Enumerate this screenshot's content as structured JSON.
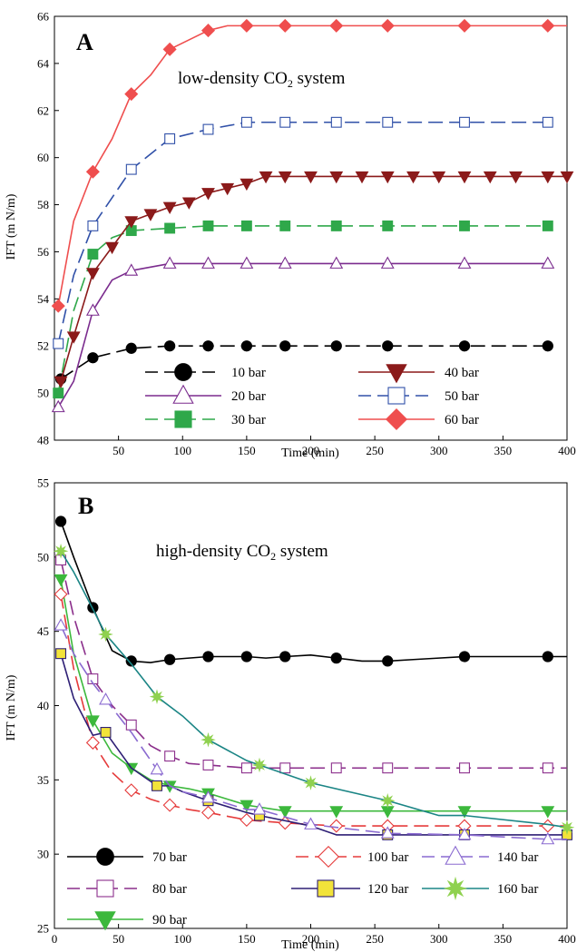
{
  "chart_data": [
    {
      "type": "line",
      "panel_label": "A",
      "annotation": {
        "prefix": "low-density CO",
        "subscript": "2",
        "suffix": " system"
      },
      "xlabel": "Time (min)",
      "ylabel": "IFT (m N/m)",
      "xlim": [
        0,
        400
      ],
      "ylim": [
        48,
        66
      ],
      "xticks": [
        50,
        100,
        150,
        200,
        250,
        300,
        350,
        400
      ],
      "yticks": [
        48,
        50,
        52,
        54,
        56,
        58,
        60,
        62,
        64,
        66
      ],
      "grid": false,
      "legend_position": "bottom",
      "series": [
        {
          "name": "10 bar",
          "color": "#000000",
          "dash": "long",
          "marker": "circle",
          "marker_fill": true,
          "x": [
            5,
            30,
            60,
            90,
            120,
            150,
            180,
            220,
            260,
            320,
            385
          ],
          "y": [
            50.6,
            51.5,
            51.9,
            52.0,
            52.0,
            52.0,
            52.0,
            52.0,
            52.0,
            52.0,
            52.0
          ],
          "markers_x": [
            5,
            30,
            60,
            90,
            120,
            150,
            180,
            220,
            260,
            320,
            385
          ]
        },
        {
          "name": "20 bar",
          "color": "#7b2c8e",
          "dash": "solid",
          "marker": "triangle-up",
          "marker_fill": false,
          "x": [
            3,
            15,
            30,
            45,
            60,
            90,
            120,
            150,
            180,
            220,
            260,
            320,
            385
          ],
          "y": [
            49.4,
            50.5,
            53.5,
            54.8,
            55.2,
            55.5,
            55.5,
            55.5,
            55.5,
            55.5,
            55.5,
            55.5,
            55.5
          ],
          "markers_x": [
            3,
            30,
            60,
            90,
            120,
            150,
            180,
            220,
            260,
            320,
            385
          ]
        },
        {
          "name": "30 bar",
          "color": "#2fa84a",
          "dash": "long",
          "marker": "square",
          "marker_fill": true,
          "x": [
            3,
            15,
            30,
            45,
            60,
            90,
            120,
            150,
            180,
            220,
            260,
            320,
            385
          ],
          "y": [
            50.0,
            53.5,
            55.9,
            56.6,
            56.9,
            57.0,
            57.1,
            57.1,
            57.1,
            57.1,
            57.1,
            57.1,
            57.1
          ],
          "markers_x": [
            3,
            30,
            60,
            90,
            120,
            150,
            180,
            220,
            260,
            320,
            385
          ]
        },
        {
          "name": "40 bar",
          "color": "#8b1a1a",
          "dash": "solid",
          "marker": "triangle-down",
          "marker_fill": true,
          "x": [
            5,
            15,
            30,
            45,
            60,
            75,
            90,
            105,
            120,
            135,
            150,
            165,
            180,
            200,
            220,
            240,
            260,
            280,
            300,
            320,
            340,
            360,
            385,
            400
          ],
          "y": [
            50.5,
            52.4,
            55.1,
            56.2,
            57.3,
            57.6,
            57.9,
            58.1,
            58.5,
            58.7,
            58.9,
            59.2,
            59.2,
            59.2,
            59.2,
            59.2,
            59.2,
            59.2,
            59.2,
            59.2,
            59.2,
            59.2,
            59.2,
            59.2
          ],
          "markers_x": [
            5,
            15,
            30,
            45,
            60,
            75,
            90,
            105,
            120,
            135,
            150,
            165,
            180,
            200,
            220,
            240,
            260,
            280,
            300,
            320,
            340,
            360,
            385,
            400
          ]
        },
        {
          "name": "50 bar",
          "color": "#3050a8",
          "dash": "long",
          "marker": "square",
          "marker_fill": false,
          "x": [
            3,
            15,
            30,
            60,
            90,
            120,
            150,
            180,
            220,
            260,
            320,
            385
          ],
          "y": [
            52.1,
            55.0,
            57.1,
            59.5,
            60.8,
            61.2,
            61.5,
            61.5,
            61.5,
            61.5,
            61.5,
            61.5
          ],
          "markers_x": [
            3,
            30,
            60,
            90,
            120,
            150,
            180,
            220,
            260,
            320,
            385
          ]
        },
        {
          "name": "60 bar",
          "color": "#ef4e4e",
          "dash": "solid",
          "marker": "diamond",
          "marker_fill": true,
          "x": [
            3,
            15,
            30,
            45,
            60,
            75,
            90,
            105,
            120,
            135,
            150,
            165,
            180,
            220,
            260,
            320,
            385,
            400
          ],
          "y": [
            53.7,
            57.3,
            59.4,
            60.8,
            62.7,
            63.5,
            64.6,
            65.0,
            65.4,
            65.6,
            65.6,
            65.6,
            65.6,
            65.6,
            65.6,
            65.6,
            65.6,
            65.6
          ],
          "markers_x": [
            3,
            30,
            60,
            90,
            120,
            150,
            180,
            220,
            260,
            320,
            385
          ]
        }
      ],
      "legend_cols": [
        [
          "10 bar",
          "20 bar",
          "30 bar"
        ],
        [
          "40 bar",
          "50 bar",
          "60 bar"
        ]
      ]
    },
    {
      "type": "line",
      "panel_label": "B",
      "annotation": {
        "prefix": "high-density CO",
        "subscript": "2",
        "suffix": " system"
      },
      "xlabel": "Time (min)",
      "ylabel": "IFT (m N/m)",
      "xlim": [
        0,
        400
      ],
      "ylim": [
        25,
        55
      ],
      "xticks": [
        0,
        50,
        100,
        150,
        200,
        250,
        300,
        350,
        400
      ],
      "yticks": [
        25,
        30,
        35,
        40,
        45,
        50,
        55
      ],
      "grid": false,
      "legend_position": "bottom",
      "series": [
        {
          "name": "70 bar",
          "color": "#000000",
          "dash": "solid",
          "marker": "circle",
          "marker_fill": true,
          "x": [
            5,
            15,
            30,
            45,
            60,
            75,
            90,
            105,
            120,
            140,
            150,
            165,
            180,
            200,
            220,
            240,
            260,
            280,
            300,
            320,
            340,
            360,
            385,
            400
          ],
          "y": [
            52.4,
            50.0,
            46.6,
            43.7,
            43.0,
            42.9,
            43.1,
            43.2,
            43.3,
            43.3,
            43.3,
            43.2,
            43.3,
            43.4,
            43.2,
            43.0,
            43.0,
            43.1,
            43.2,
            43.3,
            43.3,
            43.3,
            43.3,
            43.3
          ],
          "markers_x": [
            5,
            30,
            60,
            90,
            120,
            150,
            180,
            220,
            260,
            320,
            385
          ]
        },
        {
          "name": "80 bar",
          "color": "#8b2e8b",
          "dash": "long",
          "marker": "square",
          "marker_fill": false,
          "x": [
            5,
            15,
            30,
            45,
            60,
            75,
            90,
            105,
            120,
            150,
            180,
            220,
            260,
            320,
            385,
            400
          ],
          "y": [
            49.8,
            46.0,
            41.8,
            40.0,
            38.7,
            37.3,
            36.6,
            36.1,
            36.0,
            35.8,
            35.8,
            35.8,
            35.8,
            35.8,
            35.8,
            35.8
          ],
          "markers_x": [
            5,
            30,
            60,
            90,
            120,
            150,
            180,
            220,
            260,
            320,
            385
          ]
        },
        {
          "name": "90 bar",
          "color": "#3cb83c",
          "dash": "solid",
          "marker": "triangle-down",
          "marker_fill": true,
          "x": [
            5,
            15,
            30,
            45,
            60,
            75,
            90,
            105,
            120,
            150,
            180,
            220,
            260,
            320,
            385,
            400
          ],
          "y": [
            48.5,
            43.5,
            39.0,
            36.8,
            35.8,
            35.0,
            34.6,
            34.4,
            34.1,
            33.3,
            32.9,
            32.9,
            32.9,
            32.9,
            32.9,
            32.9
          ],
          "markers_x": [
            5,
            30,
            60,
            90,
            120,
            150,
            180,
            220,
            260,
            320,
            385
          ]
        },
        {
          "name": "100 bar",
          "color": "#e53b3b",
          "dash": "long",
          "marker": "diamond",
          "marker_fill": false,
          "x": [
            5,
            15,
            30,
            45,
            60,
            75,
            90,
            105,
            120,
            150,
            180,
            220,
            260,
            320,
            385,
            400
          ],
          "y": [
            47.5,
            42.5,
            37.5,
            35.5,
            34.3,
            33.7,
            33.3,
            33.0,
            32.8,
            32.3,
            32.1,
            31.9,
            31.9,
            31.9,
            31.9,
            31.9
          ],
          "markers_x": [
            5,
            30,
            60,
            90,
            120,
            150,
            180,
            220,
            260,
            320,
            385
          ]
        },
        {
          "name": "120 bar",
          "color": "#2e1f75",
          "dash": "solid",
          "marker": "square",
          "marker_fill": true,
          "marker_color": "#f2e33a",
          "x": [
            5,
            15,
            30,
            40,
            60,
            80,
            90,
            100,
            120,
            150,
            160,
            200,
            220,
            260,
            320,
            400
          ],
          "y": [
            43.5,
            40.5,
            38.0,
            38.2,
            35.8,
            34.6,
            34.6,
            34.2,
            33.6,
            32.8,
            32.6,
            31.9,
            31.3,
            31.3,
            31.3,
            31.3
          ],
          "markers_x": [
            5,
            40,
            80,
            120,
            160,
            260,
            320,
            400
          ]
        },
        {
          "name": "140 bar",
          "color": "#8a6ad0",
          "dash": "long",
          "marker": "triangle-up",
          "marker_fill": false,
          "x": [
            5,
            15,
            30,
            40,
            60,
            80,
            90,
            100,
            120,
            150,
            160,
            200,
            260,
            320,
            385,
            400
          ],
          "y": [
            45.4,
            43.5,
            41.5,
            40.4,
            38.2,
            35.7,
            34.6,
            34.2,
            33.8,
            33.0,
            33.0,
            32.0,
            31.4,
            31.3,
            31.0,
            31.0
          ],
          "markers_x": [
            5,
            40,
            80,
            120,
            160,
            200,
            260,
            320,
            385
          ]
        },
        {
          "name": "160 bar",
          "color": "#1b8585",
          "dash": "solid",
          "marker": "star",
          "marker_fill": true,
          "marker_color": "#8fd14f",
          "x": [
            5,
            15,
            30,
            40,
            60,
            80,
            100,
            120,
            150,
            160,
            200,
            260,
            300,
            320,
            385,
            400
          ],
          "y": [
            50.4,
            49.0,
            46.5,
            44.8,
            42.8,
            40.6,
            39.3,
            37.7,
            36.3,
            36.0,
            34.8,
            33.6,
            32.6,
            32.6,
            32.0,
            31.8
          ],
          "markers_x": [
            5,
            40,
            80,
            120,
            160,
            200,
            260,
            400
          ]
        }
      ],
      "legend_rows": [
        [
          "70 bar",
          "100 bar",
          "140 bar"
        ],
        [
          "80 bar",
          "120 bar",
          "160 bar"
        ],
        [
          "90 bar"
        ]
      ]
    }
  ]
}
